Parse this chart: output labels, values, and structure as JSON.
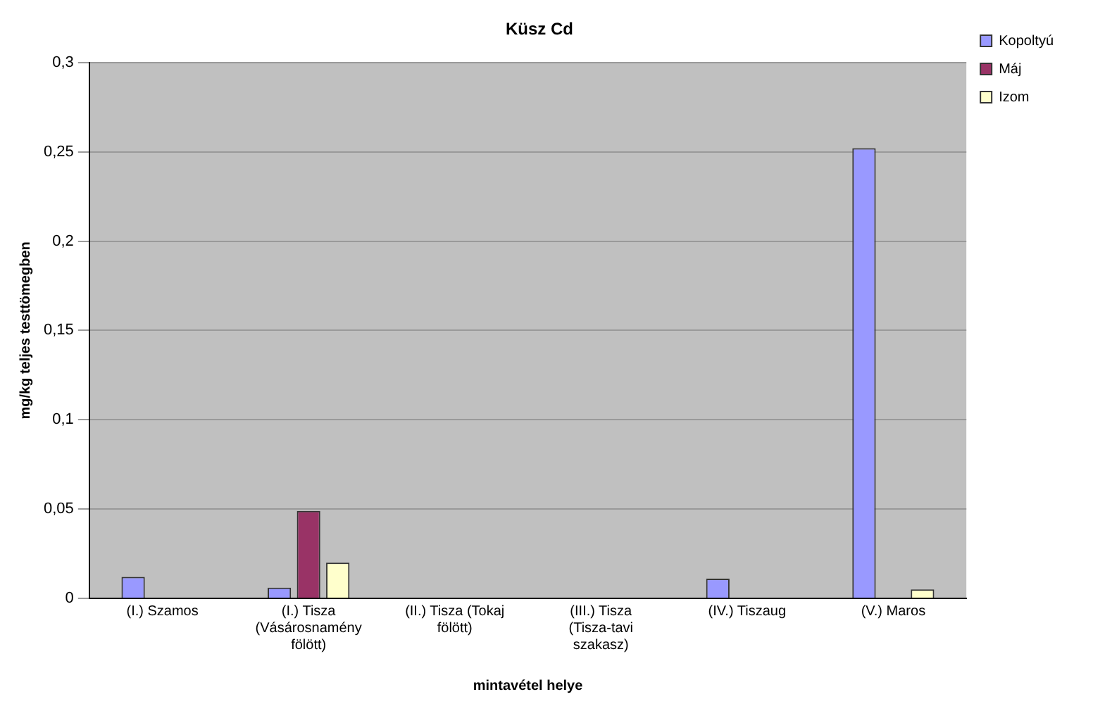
{
  "chart_data": {
    "type": "bar",
    "title": "Küsz Cd",
    "xlabel": "mintavétel helye",
    "ylabel": "mg/kg teljes testtömegben",
    "categories": [
      "(I.) Szamos",
      "(I.) Tisza (Vásárosnamény fölött)",
      "(II.) Tisza (Tokaj fölött)",
      "(III.) Tisza (Tisza-tavi szakasz)",
      "(IV.) Tiszaug",
      "(V.) Maros"
    ],
    "series": [
      {
        "name": "Kopoltyú",
        "color": "#9999ff",
        "values": [
          0.012,
          0.006,
          0,
          null,
          0.011,
          0.252
        ]
      },
      {
        "name": "Máj",
        "color": "#993366",
        "values": [
          null,
          0.049,
          0,
          null,
          null,
          null
        ]
      },
      {
        "name": "Izom",
        "color": "#ffffcc",
        "values": [
          0,
          0.02,
          0,
          null,
          0,
          0.005
        ]
      }
    ],
    "ylim": [
      0,
      0.3
    ],
    "yticks": [
      0,
      {
        "value": 0.05,
        "label": "0,05"
      },
      {
        "value": 0.1,
        "label": "0,1"
      },
      {
        "value": 0.15,
        "label": "0,15"
      },
      {
        "value": 0.2,
        "label": "0,2"
      },
      {
        "value": 0.25,
        "label": "0,25"
      },
      {
        "value": 0.3,
        "label": "0,3"
      }
    ],
    "grid": "y",
    "legend": "top right"
  }
}
